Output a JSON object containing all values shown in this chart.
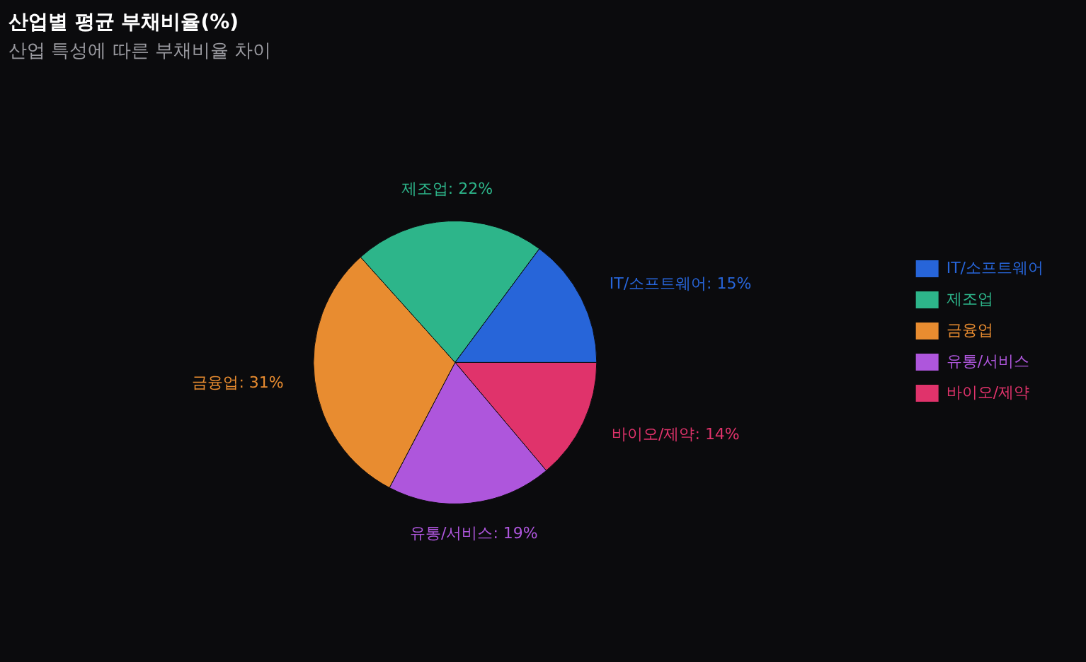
{
  "chart_data": {
    "type": "pie",
    "title": "산업별 평균 부채비율(%)",
    "subtitle": "산업 특성에 따른 부채비율 차이",
    "categories": [
      "IT/소프트웨어",
      "제조업",
      "금융업",
      "유통/서비스",
      "바이오/제약"
    ],
    "values": [
      15,
      22,
      31,
      19,
      14
    ],
    "colors": [
      "#2765d9",
      "#2db58a",
      "#e88c30",
      "#ae56dc",
      "#e0336b"
    ],
    "value_labels": [
      "IT/소프트웨어: 15%",
      "제조업: 22%",
      "금융업: 31%",
      "유통/서비스: 19%",
      "바이오/제약: 14%"
    ],
    "legend": "right"
  }
}
